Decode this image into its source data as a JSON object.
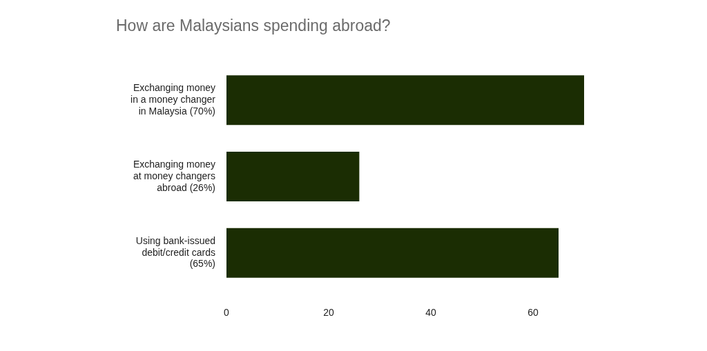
{
  "chart_data": {
    "type": "bar",
    "orientation": "horizontal",
    "title": "How are Malaysians spending abroad?",
    "categories": [
      "Exchanging money in a money changer in Malaysia (70%)",
      "Exchanging money at money changers abroad (26%)",
      "Using bank-issued debit/credit cards (65%)"
    ],
    "values": [
      70,
      26,
      65
    ],
    "color": "#1b2d03",
    "xlim": [
      0,
      70
    ],
    "xticks": [
      0,
      20,
      40,
      60
    ],
    "grid": false,
    "legend": false
  }
}
